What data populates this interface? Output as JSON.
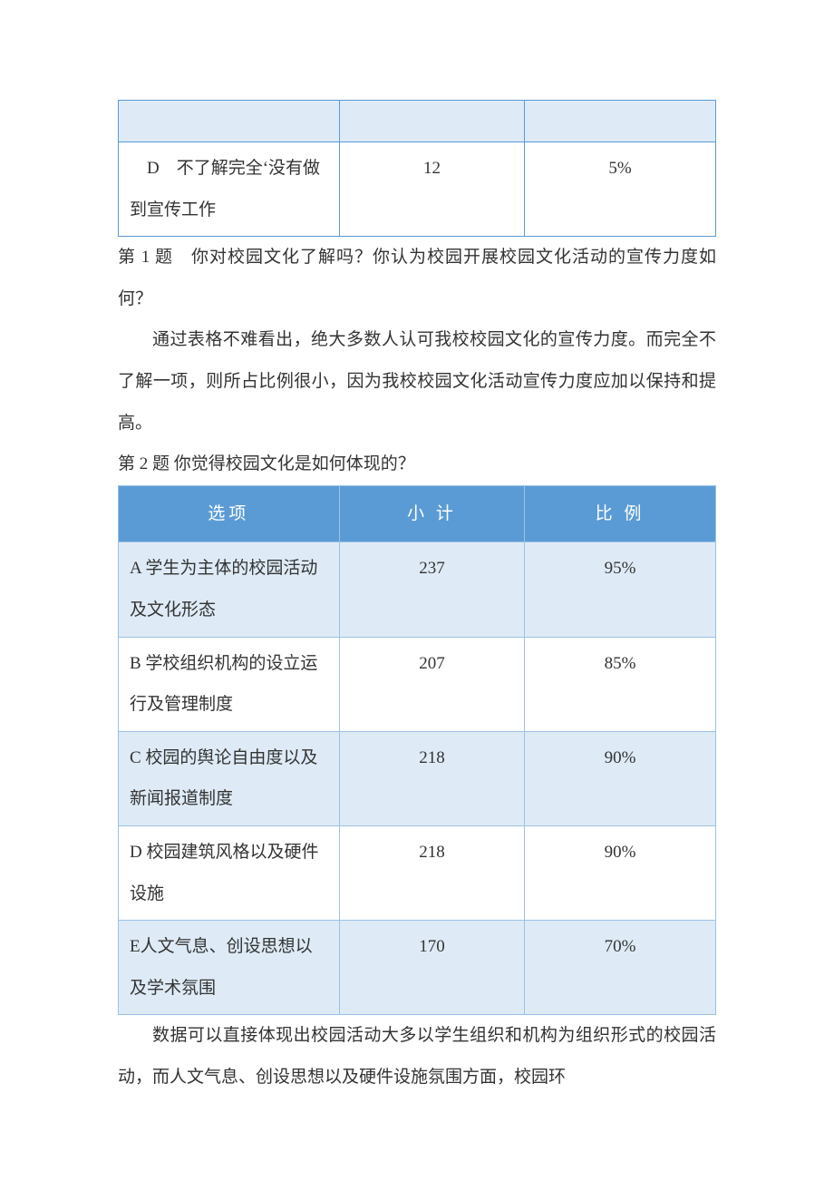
{
  "table1": {
    "border_color": "#5b9bd5",
    "alt_bg_color": "#deebf6",
    "rows": [
      {
        "option": "　D　不了解完全‘没有做到宣传工作",
        "count": "12",
        "ratio": "5%"
      }
    ]
  },
  "question1": {
    "label": "第 1 题　你对校园文化了解吗？你认为校园开展校园文化活动的宣传力度如何？",
    "analysis": "通过表格不难看出，绝大多数人认可我校校园文化的宣传力度。而完全不了解一项，则所占比例很小，因为我校校园文化活动宣传力度应加以保持和提高。"
  },
  "question2": {
    "label": "第 2 题  你觉得校园文化是如何体现的？"
  },
  "table2": {
    "header_bg": "#5b9bd5",
    "header_fg": "#ffffff",
    "border_color": "#9cc2e5",
    "alt_bg_color": "#deebf6",
    "columns": {
      "option": "选项",
      "count": "小 计",
      "ratio": "比 例"
    },
    "rows": [
      {
        "option": "A 学生为主体的校园活动及文化形态",
        "count": "237",
        "ratio": "95%"
      },
      {
        "option": "B 学校组织机构的设立运行及管理制度",
        "count": "207",
        "ratio": "85%"
      },
      {
        "option": "C 校园的舆论自由度以及新闻报道制度",
        "count": "218",
        "ratio": "90%"
      },
      {
        "option": "D 校园建筑风格以及硬件设施",
        "count": "218",
        "ratio": "90%"
      },
      {
        "option": "E人文气息、创设思想以及学术氛围",
        "count": "170",
        "ratio": "70%"
      }
    ]
  },
  "closing": {
    "text": "数据可以直接体现出校园活动大多以学生组织和机构为组织形式的校园活动，而人文气息、创设思想以及硬件设施氛围方面，校园环"
  }
}
